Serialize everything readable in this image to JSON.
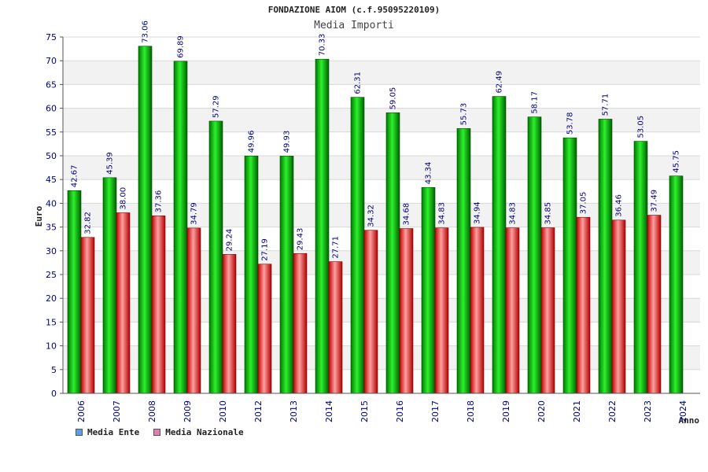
{
  "chart_data": {
    "type": "bar",
    "title": "FONDAZIONE AIOM (c.f.95095220109)",
    "subtitle": "Media Importi",
    "xlabel": "Anno",
    "ylabel": "Euro",
    "ylim": [
      0,
      75
    ],
    "yticks": [
      "0",
      "5",
      "10",
      "15",
      "20",
      "25",
      "30",
      "35",
      "40",
      "45",
      "50",
      "55",
      "60",
      "65",
      "70",
      "75"
    ],
    "grid": true,
    "categories": [
      "2006",
      "2007",
      "2008",
      "2009",
      "2010",
      "2012",
      "2013",
      "2014",
      "2015",
      "2016",
      "2017",
      "2018",
      "2019",
      "2020",
      "2021",
      "2022",
      "2023",
      "2024"
    ],
    "series": [
      {
        "name": "Media Ente",
        "color": "#00c000",
        "values": [
          42.67,
          45.39,
          73.06,
          69.89,
          57.29,
          49.96,
          49.93,
          70.33,
          62.31,
          59.05,
          43.34,
          55.73,
          62.49,
          58.17,
          53.78,
          57.71,
          53.05,
          45.75
        ],
        "labels": [
          "42.67",
          "45.39",
          "73.06",
          "69.89",
          "57.29",
          "49.96",
          "49.93",
          "70.33",
          "62.31",
          "59.05",
          "43.34",
          "55.73",
          "62.49",
          "58.17",
          "53.78",
          "57.71",
          "53.05",
          "45.75"
        ]
      },
      {
        "name": "Media Nazionale",
        "color": "#e02020",
        "values": [
          32.82,
          38.0,
          37.36,
          34.79,
          29.24,
          27.19,
          29.43,
          27.71,
          34.32,
          34.68,
          34.83,
          34.94,
          34.83,
          34.85,
          37.05,
          36.46,
          37.49,
          null
        ],
        "labels": [
          "32.82",
          "38.00",
          "37.36",
          "34.79",
          "29.24",
          "27.19",
          "29.43",
          "27.71",
          "34.32",
          "34.68",
          "34.83",
          "34.94",
          "34.83",
          "34.85",
          "37.05",
          "36.46",
          "37.49",
          null
        ]
      }
    ],
    "legend": [
      {
        "label": "Media Ente",
        "color": "#5aa0e8"
      },
      {
        "label": "Media Nazionale",
        "color": "#e080b0"
      }
    ],
    "legend_position": "bottom-left"
  }
}
